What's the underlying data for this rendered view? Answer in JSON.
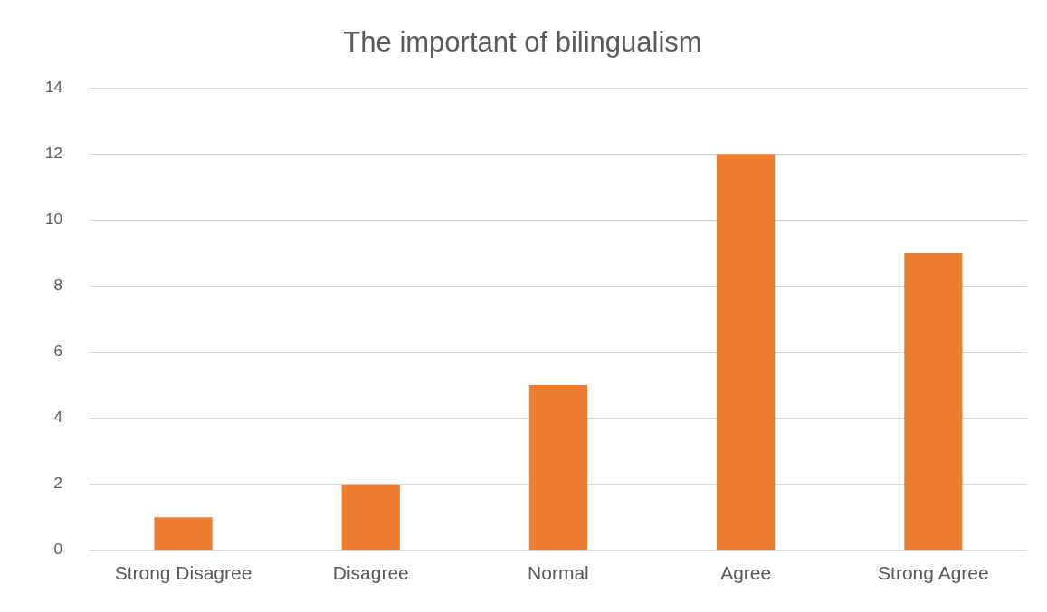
{
  "chart_data": {
    "type": "bar",
    "title": "The important of bilingualism",
    "categories": [
      "Strong Disagree",
      "Disagree",
      "Normal",
      "Agree",
      "Strong Agree"
    ],
    "values": [
      1,
      2,
      5,
      12,
      9
    ],
    "color": "#ed7d31",
    "ylim": [
      0,
      14
    ],
    "yticks": [
      0,
      2,
      4,
      6,
      8,
      10,
      12,
      14
    ],
    "grid": "y",
    "legend": false
  }
}
